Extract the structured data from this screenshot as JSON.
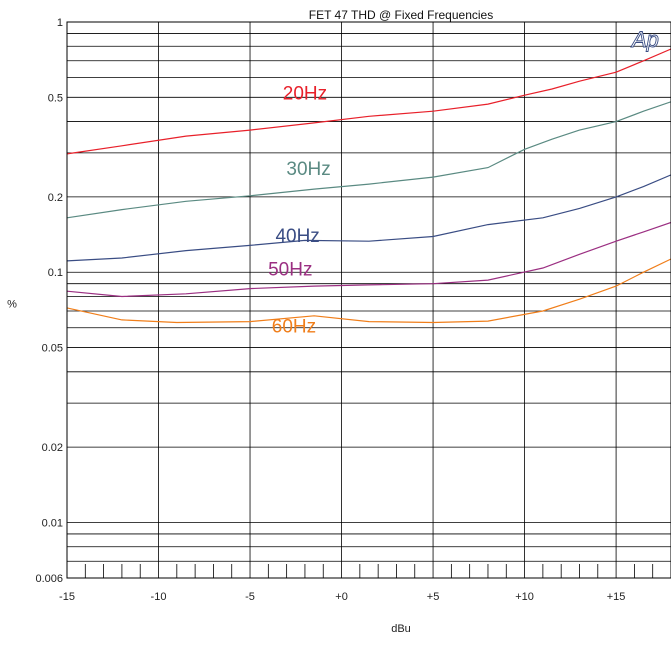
{
  "chart_data": {
    "type": "line",
    "title": "FET 47 THD @ Fixed Frequencies",
    "xlabel": "dBu",
    "ylabel": "%",
    "xlim": [
      -15,
      18
    ],
    "ylim": [
      0.006,
      1
    ],
    "yscale": "log",
    "grid": true,
    "legend": "inline labels",
    "logo_text": "Ap",
    "x_ticks": [
      {
        "value": -15,
        "label": "-15"
      },
      {
        "value": -10,
        "label": "-10"
      },
      {
        "value": -5,
        "label": "-5"
      },
      {
        "value": 0,
        "label": "+0"
      },
      {
        "value": 5,
        "label": "+5"
      },
      {
        "value": 10,
        "label": "+10"
      },
      {
        "value": 15,
        "label": "+15"
      }
    ],
    "y_ticks": [
      {
        "value": 1,
        "label": "1"
      },
      {
        "value": 0.5,
        "label": "0.5"
      },
      {
        "value": 0.2,
        "label": "0.2"
      },
      {
        "value": 0.1,
        "label": "0.1"
      },
      {
        "value": 0.05,
        "label": "0.05"
      },
      {
        "value": 0.02,
        "label": "0.02"
      },
      {
        "value": 0.01,
        "label": "0.01"
      },
      {
        "value": 0.006,
        "label": "0.006"
      }
    ],
    "series": [
      {
        "name": "20Hz",
        "color": "#e8202a",
        "label_at": [
          -2.0,
          0.49
        ],
        "points": [
          [
            -15,
            0.297
          ],
          [
            -12,
            0.32
          ],
          [
            -8.5,
            0.35
          ],
          [
            -5,
            0.37
          ],
          [
            -1.5,
            0.395
          ],
          [
            1.5,
            0.42
          ],
          [
            5,
            0.44
          ],
          [
            8,
            0.47
          ],
          [
            10,
            0.51
          ],
          [
            11.5,
            0.54
          ],
          [
            13,
            0.58
          ],
          [
            15,
            0.63
          ],
          [
            16.5,
            0.7
          ],
          [
            18,
            0.78
          ]
        ]
      },
      {
        "name": "30Hz",
        "color": "#5a8a82",
        "label_at": [
          -1.8,
          0.245
        ],
        "points": [
          [
            -15,
            0.165
          ],
          [
            -12,
            0.178
          ],
          [
            -8.5,
            0.192
          ],
          [
            -5,
            0.202
          ],
          [
            -1.5,
            0.215
          ],
          [
            1.5,
            0.225
          ],
          [
            5,
            0.24
          ],
          [
            8,
            0.262
          ],
          [
            10,
            0.31
          ],
          [
            11.5,
            0.34
          ],
          [
            13,
            0.37
          ],
          [
            15,
            0.4
          ],
          [
            16.5,
            0.44
          ],
          [
            18,
            0.48
          ]
        ]
      },
      {
        "name": "40Hz",
        "color": "#3a4d84",
        "label_at": [
          -2.4,
          0.132
        ],
        "points": [
          [
            -15,
            0.111
          ],
          [
            -12,
            0.114
          ],
          [
            -8.5,
            0.122
          ],
          [
            -5,
            0.128
          ],
          [
            -2,
            0.134
          ],
          [
            1.5,
            0.133
          ],
          [
            5,
            0.139
          ],
          [
            8,
            0.155
          ],
          [
            11,
            0.165
          ],
          [
            13,
            0.18
          ],
          [
            15,
            0.2
          ],
          [
            16.5,
            0.22
          ],
          [
            18,
            0.245
          ]
        ]
      },
      {
        "name": "50Hz",
        "color": "#9b2f82",
        "label_at": [
          -2.8,
          0.097
        ],
        "points": [
          [
            -15,
            0.084
          ],
          [
            -12,
            0.08
          ],
          [
            -8.5,
            0.082
          ],
          [
            -5,
            0.086
          ],
          [
            -1.5,
            0.088
          ],
          [
            1.5,
            0.089
          ],
          [
            5,
            0.09
          ],
          [
            8,
            0.093
          ],
          [
            11,
            0.104
          ],
          [
            13,
            0.118
          ],
          [
            15,
            0.133
          ],
          [
            16.5,
            0.145
          ],
          [
            18,
            0.158
          ]
        ]
      },
      {
        "name": "60Hz",
        "color": "#f07e1a",
        "label_at": [
          -2.6,
          0.0575
        ],
        "points": [
          [
            -15,
            0.072
          ],
          [
            -12,
            0.0645
          ],
          [
            -9,
            0.063
          ],
          [
            -5,
            0.0635
          ],
          [
            -1.5,
            0.067
          ],
          [
            1.5,
            0.0635
          ],
          [
            5,
            0.063
          ],
          [
            8,
            0.0638
          ],
          [
            11,
            0.07
          ],
          [
            13,
            0.078
          ],
          [
            15,
            0.088
          ],
          [
            16.5,
            0.1
          ],
          [
            18,
            0.113
          ]
        ]
      }
    ]
  }
}
